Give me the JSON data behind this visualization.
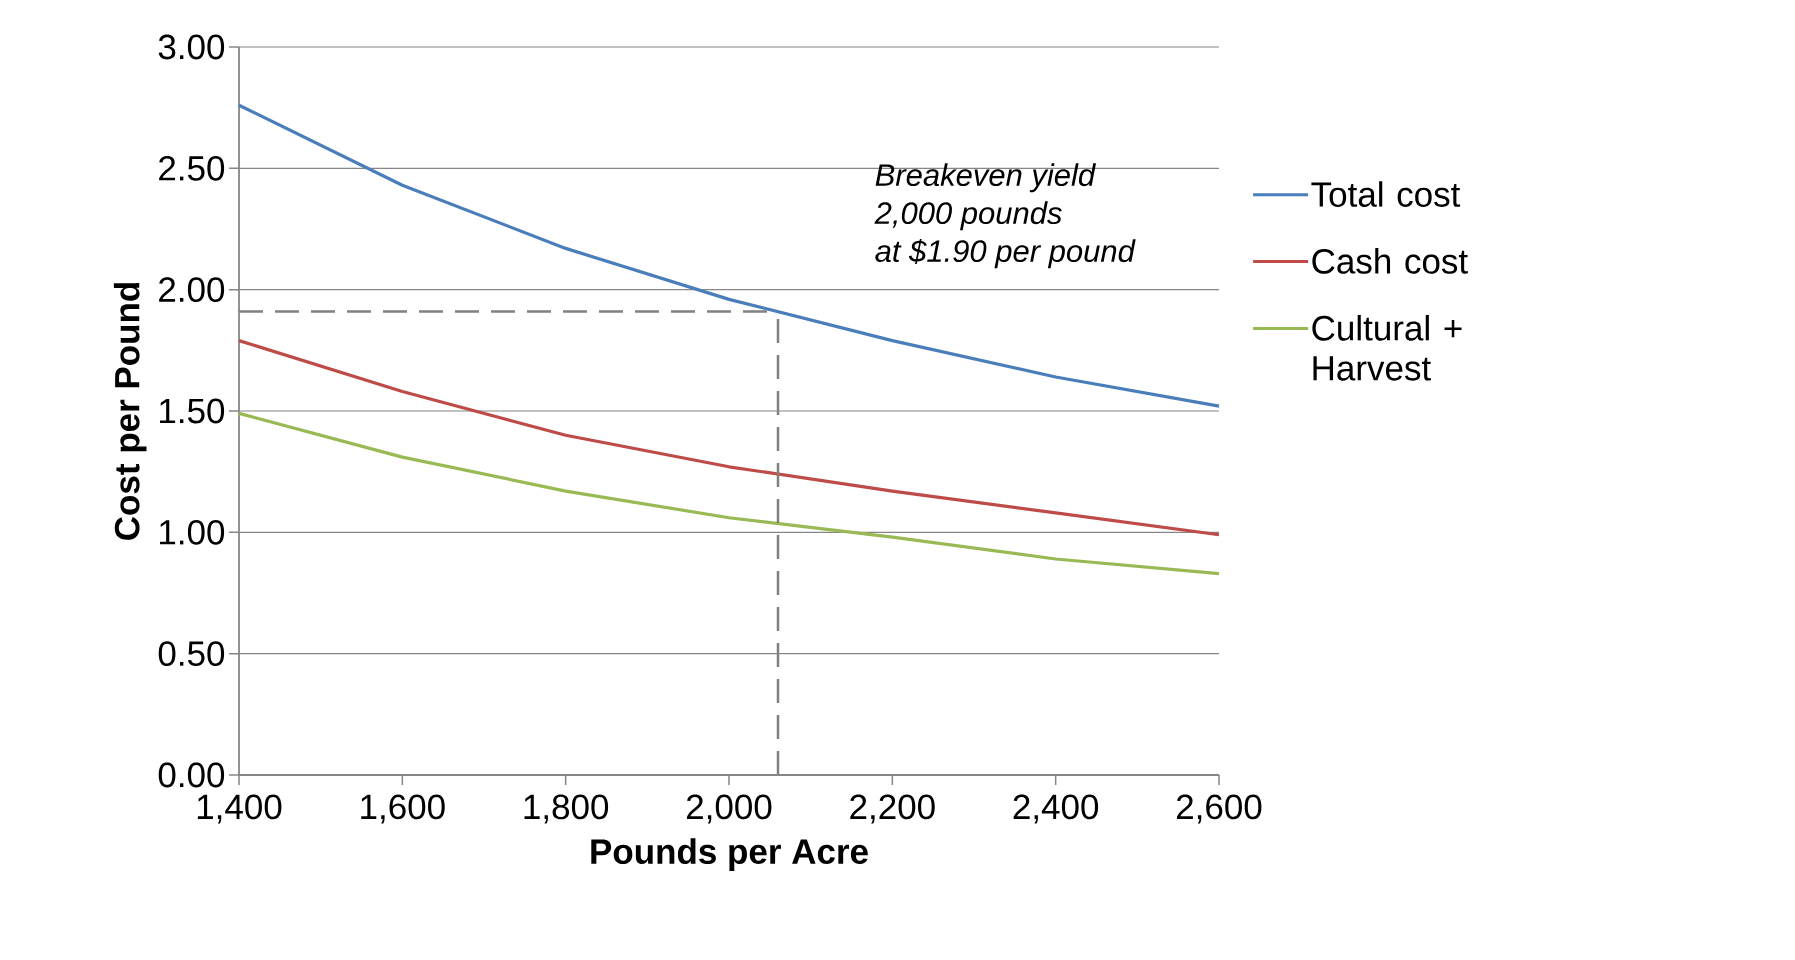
{
  "chart_data": {
    "type": "line",
    "xlabel": "Pounds per Acre",
    "ylabel": "Cost per  Pound",
    "x": [
      1400,
      1600,
      1800,
      2000,
      2200,
      2400,
      2600
    ],
    "series": [
      {
        "name": "Total cost",
        "color": "#4a7ebb",
        "values": [
          2.76,
          2.43,
          2.17,
          1.96,
          1.79,
          1.64,
          1.52
        ]
      },
      {
        "name": "Cash cost",
        "color": "#be4b48",
        "values": [
          1.79,
          1.58,
          1.4,
          1.27,
          1.17,
          1.08,
          0.99
        ]
      },
      {
        "name": "Cultural + Harvest",
        "color": "#98b954",
        "values": [
          1.49,
          1.31,
          1.17,
          1.06,
          0.98,
          0.89,
          0.83
        ]
      }
    ],
    "xlim": [
      1400,
      2600
    ],
    "ylim": [
      0,
      3
    ],
    "xticks": [
      {
        "value": 1400,
        "label": "1,400"
      },
      {
        "value": 1600,
        "label": "1,600"
      },
      {
        "value": 1800,
        "label": "1,800"
      },
      {
        "value": 2000,
        "label": "2,000"
      },
      {
        "value": 2200,
        "label": "2,200"
      },
      {
        "value": 2400,
        "label": "2,400"
      },
      {
        "value": 2600,
        "label": "2,600"
      }
    ],
    "yticks": [
      {
        "value": 0,
        "label": "0.00"
      },
      {
        "value": 0.5,
        "label": "0.50"
      },
      {
        "value": 1,
        "label": "1.00"
      },
      {
        "value": 1.5,
        "label": "1.50"
      },
      {
        "value": 2,
        "label": "2.00"
      },
      {
        "value": 2.5,
        "label": "2.50"
      },
      {
        "value": 3,
        "label": "3.00"
      }
    ],
    "ref_lines": [
      {
        "axis": "y",
        "value": 1.91,
        "color": "#808080",
        "line_style": "dashed"
      },
      {
        "axis": "x",
        "value": 2060,
        "color": "#808080",
        "line_style": "dashed"
      }
    ],
    "annotations": [
      "Breakeven yield",
      "2,000 pounds",
      "at  $1.90 per pound"
    ],
    "grid": "y",
    "legend": "right",
    "marker": "none",
    "line_style": "solid"
  }
}
